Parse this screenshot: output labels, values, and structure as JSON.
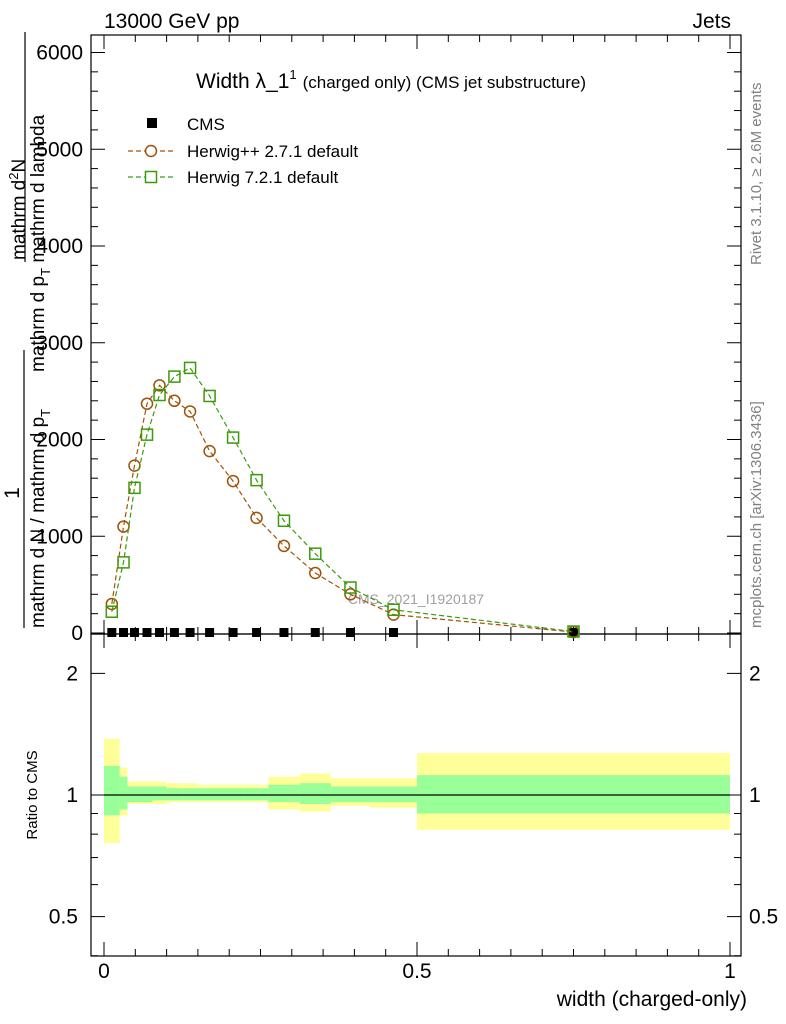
{
  "header": {
    "beam": "13000 GeV pp",
    "process": "Jets"
  },
  "side_labels": {
    "rivet": "Rivet 3.1.10, ≥ 2.6M events",
    "mcplots": "mcplots.cern.ch [arXiv:1306.3436]"
  },
  "watermark": "CMS_2021_I1920187",
  "colors": {
    "cms": "#000000",
    "herwigpp": "#a0520a",
    "herwig7": "#3a9a0a",
    "band_inner": "#99ff99",
    "band_outer": "#ffff99"
  },
  "chart_data": [
    {
      "type": "line",
      "title": "Width λ_1",
      "title_sup": "1",
      "title_note": "(charged only) (CMS jet substructure)",
      "ylabel_numerator": "1",
      "ylabel_denominator": "mathrm d N / mathrm d p",
      "ylabel_deno_sub": "T",
      "ylabel_right_numerator": "mathrm d",
      "ylabel_right_numerator_sup": "2",
      "ylabel_right_numerator_cont": "N",
      "ylabel_right_denominator": "mathrm d p",
      "ylabel_right_denominator_sub": "T",
      "ylabel_right_denominator_cont": " mathrm d lambda",
      "ylabel_full": "1 / (mathrm d N / mathrm d p_T) · mathrm d^2 N / (mathrm d p_T mathrm d lambda)",
      "xlim": [
        0,
        1
      ],
      "ylim": [
        0,
        6000
      ],
      "y_ticks": [
        "0",
        "1000",
        "2000",
        "3000",
        "4000",
        "5000",
        "6000"
      ],
      "x_ticks": [
        "0",
        "0.5",
        "1"
      ],
      "legend_position": "top-left",
      "series": [
        {
          "name": "CMS",
          "marker": "filled-square",
          "x": [
            0.0125,
            0.0312,
            0.0487,
            0.0687,
            0.0887,
            0.1125,
            0.1375,
            0.1687,
            0.2062,
            0.2437,
            0.2875,
            0.3375,
            0.3937,
            0.4625,
            0.75
          ],
          "y": [
            0,
            0,
            0,
            0,
            0,
            0,
            0,
            0,
            0,
            0,
            0,
            0,
            0,
            0,
            0
          ]
        },
        {
          "name": "Herwig++ 2.7.1 default",
          "marker": "open-circle",
          "x": [
            0.0125,
            0.0312,
            0.0487,
            0.0687,
            0.0887,
            0.1125,
            0.1375,
            0.1687,
            0.2062,
            0.2437,
            0.2875,
            0.3375,
            0.3937,
            0.4625,
            0.75
          ],
          "y": [
            300,
            1100,
            1730,
            2370,
            2560,
            2400,
            2290,
            1880,
            1570,
            1190,
            900,
            620,
            400,
            190,
            10
          ]
        },
        {
          "name": "Herwig 7.2.1 default",
          "marker": "open-square",
          "x": [
            0.0125,
            0.0312,
            0.0487,
            0.0687,
            0.0887,
            0.1125,
            0.1375,
            0.1687,
            0.2062,
            0.2437,
            0.2875,
            0.3375,
            0.3937,
            0.4625,
            0.75
          ],
          "y": [
            220,
            730,
            1500,
            2050,
            2460,
            2650,
            2740,
            2450,
            2020,
            1580,
            1160,
            820,
            470,
            240,
            15
          ]
        }
      ]
    },
    {
      "type": "area",
      "ylabel": "Ratio to CMS",
      "xlabel": "width (charged-only)",
      "xlim": [
        0,
        1
      ],
      "ylim": [
        0.4,
        2.3
      ],
      "y_scale": "log",
      "y_ticks": [
        "0.5",
        "1",
        "2"
      ],
      "x_ticks": [
        "0",
        "0.5",
        "1"
      ],
      "bins": [
        {
          "lo": 0.0,
          "hi": 0.025,
          "inner": [
            0.89,
            1.18
          ],
          "outer": [
            0.76,
            1.38
          ]
        },
        {
          "lo": 0.025,
          "hi": 0.0375,
          "inner": [
            0.92,
            1.11
          ],
          "outer": [
            0.89,
            1.17
          ]
        },
        {
          "lo": 0.0375,
          "hi": 0.06,
          "inner": [
            0.96,
            1.05
          ],
          "outer": [
            0.95,
            1.08
          ]
        },
        {
          "lo": 0.06,
          "hi": 0.0775,
          "inner": [
            0.96,
            1.05
          ],
          "outer": [
            0.95,
            1.08
          ]
        },
        {
          "lo": 0.0775,
          "hi": 0.1,
          "inner": [
            0.97,
            1.05
          ],
          "outer": [
            0.95,
            1.08
          ]
        },
        {
          "lo": 0.1,
          "hi": 0.125,
          "inner": [
            0.97,
            1.04
          ],
          "outer": [
            0.96,
            1.07
          ]
        },
        {
          "lo": 0.125,
          "hi": 0.15,
          "inner": [
            0.97,
            1.04
          ],
          "outer": [
            0.96,
            1.07
          ]
        },
        {
          "lo": 0.15,
          "hi": 0.1875,
          "inner": [
            0.97,
            1.04
          ],
          "outer": [
            0.96,
            1.06
          ]
        },
        {
          "lo": 0.1875,
          "hi": 0.225,
          "inner": [
            0.97,
            1.04
          ],
          "outer": [
            0.96,
            1.06
          ]
        },
        {
          "lo": 0.225,
          "hi": 0.2625,
          "inner": [
            0.97,
            1.04
          ],
          "outer": [
            0.96,
            1.06
          ]
        },
        {
          "lo": 0.2625,
          "hi": 0.3125,
          "inner": [
            0.96,
            1.06
          ],
          "outer": [
            0.92,
            1.11
          ]
        },
        {
          "lo": 0.3125,
          "hi": 0.3625,
          "inner": [
            0.95,
            1.07
          ],
          "outer": [
            0.91,
            1.13
          ]
        },
        {
          "lo": 0.3625,
          "hi": 0.425,
          "inner": [
            0.96,
            1.05
          ],
          "outer": [
            0.94,
            1.1
          ]
        },
        {
          "lo": 0.425,
          "hi": 0.5,
          "inner": [
            0.96,
            1.05
          ],
          "outer": [
            0.93,
            1.1
          ]
        },
        {
          "lo": 0.5,
          "hi": 1.0,
          "inner": [
            0.9,
            1.12
          ],
          "outer": [
            0.82,
            1.27
          ]
        }
      ]
    }
  ]
}
